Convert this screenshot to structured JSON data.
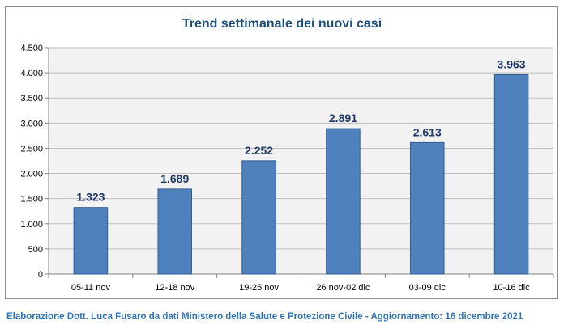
{
  "chart_data": {
    "type": "bar",
    "title": "Trend settimanale dei nuovi casi",
    "categories": [
      "05-11 nov",
      "12-18 nov",
      "19-25 nov",
      "26 nov-02 dic",
      "03-09 dic",
      "10-16 dic"
    ],
    "values": [
      1323,
      1689,
      2252,
      2891,
      2613,
      3963
    ],
    "value_labels": [
      "1.323",
      "1.689",
      "2.252",
      "2.891",
      "2.613",
      "3.963"
    ],
    "ylim": [
      0,
      4500
    ],
    "yticks": [
      0,
      500,
      1000,
      1500,
      2000,
      2500,
      3000,
      3500,
      4000,
      4500
    ],
    "ytick_labels": [
      "0",
      "500",
      "1.000",
      "1.500",
      "2.000",
      "2.500",
      "3.000",
      "3.500",
      "4.000",
      "4.500"
    ],
    "xlabel": "",
    "ylabel": "",
    "grid": true,
    "bar_color": "#4f81bd",
    "bar_edge_color": "#2f5d8f",
    "plot_background": "#f2f2f2",
    "grid_color": "#bfbfbf",
    "label_color": "#1f3864",
    "title_color": "#1f4e79"
  },
  "footer": {
    "text": "Elaborazione Dott. Luca Fusaro da dati Ministero della Salute e Protezione Civile - Aggiornamento: 16 dicembre 2021",
    "color": "#2e75b6"
  }
}
